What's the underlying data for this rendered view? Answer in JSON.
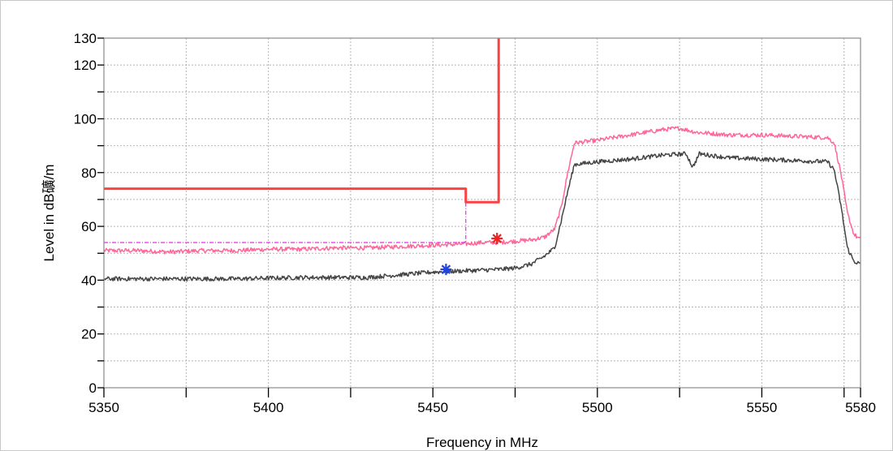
{
  "chart_data": {
    "type": "line",
    "title": "",
    "xlabel": "Frequency in MHz",
    "ylabel": "Level in dB礦/m",
    "xlim": [
      5350,
      5580
    ],
    "ylim": [
      0,
      130
    ],
    "x_ticks": [
      5350,
      5400,
      5450,
      5500,
      5550,
      5580
    ],
    "x_minor_ticks": [
      5375,
      5425,
      5475,
      5525,
      5575
    ],
    "y_ticks": [
      0,
      20,
      40,
      60,
      80,
      100,
      120,
      130
    ],
    "y_minor_ticks": [
      10,
      30,
      50,
      70,
      90,
      110
    ],
    "grid": true,
    "series": [
      {
        "name": "",
        "color": "#ff6699",
        "points": [
          [
            5350,
            51
          ],
          [
            5360,
            51
          ],
          [
            5370,
            50.5
          ],
          [
            5380,
            51
          ],
          [
            5390,
            51
          ],
          [
            5400,
            51.5
          ],
          [
            5410,
            51.5
          ],
          [
            5420,
            52
          ],
          [
            5430,
            52
          ],
          [
            5440,
            52.5
          ],
          [
            5450,
            53
          ],
          [
            5460,
            53.5
          ],
          [
            5465,
            54
          ],
          [
            5470,
            54
          ],
          [
            5475,
            54.5
          ],
          [
            5480,
            55
          ],
          [
            5484,
            56
          ],
          [
            5487,
            59
          ],
          [
            5489,
            67
          ],
          [
            5491,
            80
          ],
          [
            5493,
            91
          ],
          [
            5500,
            92
          ],
          [
            5510,
            94
          ],
          [
            5520,
            96
          ],
          [
            5525,
            96.5
          ],
          [
            5530,
            95
          ],
          [
            5540,
            94
          ],
          [
            5550,
            94
          ],
          [
            5560,
            93.5
          ],
          [
            5570,
            93
          ],
          [
            5572,
            91
          ],
          [
            5574,
            80
          ],
          [
            5576,
            65
          ],
          [
            5578,
            57
          ],
          [
            5580,
            55
          ]
        ]
      },
      {
        "name": "",
        "color": "#444444",
        "points": [
          [
            5350,
            40.5
          ],
          [
            5370,
            40.5
          ],
          [
            5390,
            40.5
          ],
          [
            5410,
            41
          ],
          [
            5430,
            41
          ],
          [
            5440,
            42
          ],
          [
            5450,
            43
          ],
          [
            5460,
            43.5
          ],
          [
            5470,
            44
          ],
          [
            5475,
            44.5
          ],
          [
            5480,
            46
          ],
          [
            5484,
            49
          ],
          [
            5487,
            52
          ],
          [
            5489,
            62
          ],
          [
            5491,
            73
          ],
          [
            5493,
            83
          ],
          [
            5500,
            84
          ],
          [
            5510,
            85
          ],
          [
            5520,
            86.5
          ],
          [
            5527,
            87
          ],
          [
            5529,
            82
          ],
          [
            5531,
            87
          ],
          [
            5540,
            85.5
          ],
          [
            5550,
            85
          ],
          [
            5560,
            84.5
          ],
          [
            5570,
            84
          ],
          [
            5572,
            81
          ],
          [
            5574,
            68
          ],
          [
            5576,
            52
          ],
          [
            5578,
            47
          ],
          [
            5580,
            46
          ]
        ]
      },
      {
        "name": "",
        "color": "#ff4040",
        "points": [
          [
            5350,
            74
          ],
          [
            5460,
            74
          ],
          [
            5460,
            69
          ],
          [
            5470,
            69
          ],
          [
            5470,
            130
          ]
        ]
      },
      {
        "name": "",
        "color": "#dd33dd",
        "style": "dashed",
        "points": [
          [
            5350,
            54
          ],
          [
            5460,
            54
          ],
          [
            5460,
            69
          ]
        ]
      }
    ],
    "markers": [
      {
        "x": 5469.5,
        "y": 55.5,
        "color": "#ee2222",
        "symbol": "*"
      },
      {
        "x": 5454,
        "y": 44,
        "color": "#2244dd",
        "symbol": "*"
      }
    ]
  }
}
